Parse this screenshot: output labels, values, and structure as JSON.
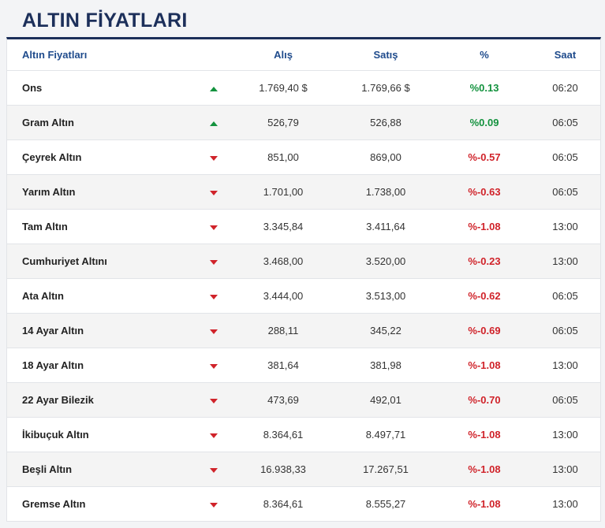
{
  "page_title": "ALTIN FİYATLARI",
  "colors": {
    "accent": "#1c2f5a",
    "header_text": "#1f4b8c",
    "up": "#13923e",
    "down": "#d0232a"
  },
  "table": {
    "headers": {
      "name": "Altın Fiyatları",
      "buy": "Alış",
      "sell": "Satış",
      "percent": "%",
      "time": "Saat"
    },
    "rows": [
      {
        "name": "Ons",
        "direction": "up",
        "direction_icon": "arrow-up-icon",
        "buy": "1.769,40 $",
        "sell": "1.769,66 $",
        "percent": "%0.13",
        "time": "06:20"
      },
      {
        "name": "Gram Altın",
        "direction": "up",
        "direction_icon": "arrow-up-icon",
        "buy": "526,79",
        "sell": "526,88",
        "percent": "%0.09",
        "time": "06:05"
      },
      {
        "name": "Çeyrek Altın",
        "direction": "down",
        "direction_icon": "arrow-down-icon",
        "buy": "851,00",
        "sell": "869,00",
        "percent": "%-0.57",
        "time": "06:05"
      },
      {
        "name": "Yarım Altın",
        "direction": "down",
        "direction_icon": "arrow-down-icon",
        "buy": "1.701,00",
        "sell": "1.738,00",
        "percent": "%-0.63",
        "time": "06:05"
      },
      {
        "name": "Tam Altın",
        "direction": "down",
        "direction_icon": "arrow-down-icon",
        "buy": "3.345,84",
        "sell": "3.411,64",
        "percent": "%-1.08",
        "time": "13:00"
      },
      {
        "name": "Cumhuriyet Altını",
        "direction": "down",
        "direction_icon": "arrow-down-icon",
        "buy": "3.468,00",
        "sell": "3.520,00",
        "percent": "%-0.23",
        "time": "13:00"
      },
      {
        "name": "Ata Altın",
        "direction": "down",
        "direction_icon": "arrow-down-icon",
        "buy": "3.444,00",
        "sell": "3.513,00",
        "percent": "%-0.62",
        "time": "06:05"
      },
      {
        "name": "14 Ayar Altın",
        "direction": "down",
        "direction_icon": "arrow-down-icon",
        "buy": "288,11",
        "sell": "345,22",
        "percent": "%-0.69",
        "time": "06:05"
      },
      {
        "name": "18 Ayar Altın",
        "direction": "down",
        "direction_icon": "arrow-down-icon",
        "buy": "381,64",
        "sell": "381,98",
        "percent": "%-1.08",
        "time": "13:00"
      },
      {
        "name": "22 Ayar Bilezik",
        "direction": "down",
        "direction_icon": "arrow-down-icon",
        "buy": "473,69",
        "sell": "492,01",
        "percent": "%-0.70",
        "time": "06:05"
      },
      {
        "name": "İkibuçuk Altın",
        "direction": "down",
        "direction_icon": "arrow-down-icon",
        "buy": "8.364,61",
        "sell": "8.497,71",
        "percent": "%-1.08",
        "time": "13:00"
      },
      {
        "name": "Beşli Altın",
        "direction": "down",
        "direction_icon": "arrow-down-icon",
        "buy": "16.938,33",
        "sell": "17.267,51",
        "percent": "%-1.08",
        "time": "13:00"
      },
      {
        "name": "Gremse Altın",
        "direction": "down",
        "direction_icon": "arrow-down-icon",
        "buy": "8.364,61",
        "sell": "8.555,27",
        "percent": "%-1.08",
        "time": "13:00"
      }
    ]
  }
}
